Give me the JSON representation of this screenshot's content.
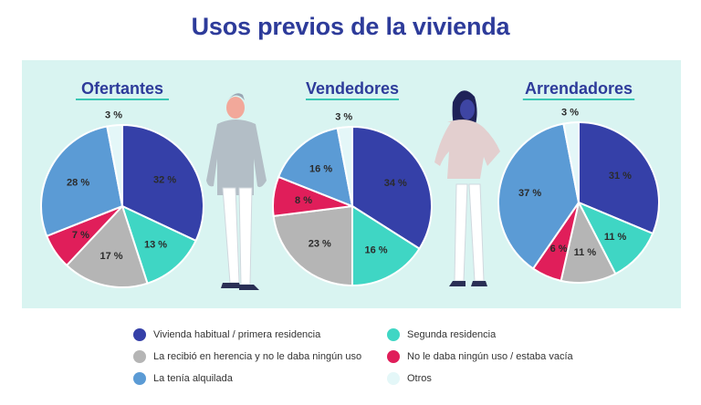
{
  "title": "Usos previos de la vivienda",
  "colors": {
    "habitual": "#3540a8",
    "segunda": "#3fd6c4",
    "herencia": "#b5b5b5",
    "vacia": "#e01e5a",
    "alquilada": "#5b9bd5",
    "otros": "#e4f7f8"
  },
  "legend": [
    {
      "key": "habitual",
      "label": "Vivienda habitual / primera residencia"
    },
    {
      "key": "segunda",
      "label": "Segunda residencia"
    },
    {
      "key": "herencia",
      "label": "La recibió en herencia y no le daba ningún uso"
    },
    {
      "key": "vacia",
      "label": "No le daba ningún uso / estaba vacía"
    },
    {
      "key": "alquilada",
      "label": "La tenía alquilada"
    },
    {
      "key": "otros",
      "label": "Otros"
    }
  ],
  "chart_data": [
    {
      "type": "pie",
      "title": "Ofertantes",
      "slices": [
        {
          "key": "habitual",
          "value": 32,
          "label": "32 %"
        },
        {
          "key": "segunda",
          "value": 13,
          "label": "13 %"
        },
        {
          "key": "herencia",
          "value": 17,
          "label": "17 %"
        },
        {
          "key": "vacia",
          "value": 7,
          "label": "7 %"
        },
        {
          "key": "alquilada",
          "value": 28,
          "label": "28 %"
        },
        {
          "key": "otros",
          "value": 3,
          "label": "3 %"
        }
      ]
    },
    {
      "type": "pie",
      "title": "Vendedores",
      "slices": [
        {
          "key": "habitual",
          "value": 34,
          "label": "34 %"
        },
        {
          "key": "segunda",
          "value": 16,
          "label": "16 %"
        },
        {
          "key": "herencia",
          "value": 23,
          "label": "23 %"
        },
        {
          "key": "vacia",
          "value": 8,
          "label": "8 %"
        },
        {
          "key": "alquilada",
          "value": 16,
          "label": "16 %"
        },
        {
          "key": "otros",
          "value": 3,
          "label": "3 %"
        }
      ]
    },
    {
      "type": "pie",
      "title": "Arrendadores",
      "slices": [
        {
          "key": "habitual",
          "value": 31,
          "label": "31 %"
        },
        {
          "key": "segunda",
          "value": 11,
          "label": "11 %"
        },
        {
          "key": "herencia",
          "value": 11,
          "label": "11 %"
        },
        {
          "key": "vacia",
          "value": 6,
          "label": "6 %"
        },
        {
          "key": "alquilada",
          "value": 37,
          "label": "37 %"
        },
        {
          "key": "otros",
          "value": 3,
          "label": "3 %"
        }
      ]
    }
  ]
}
